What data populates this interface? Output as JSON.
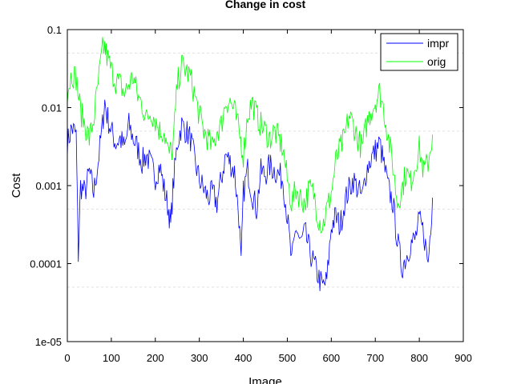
{
  "chart_data": {
    "type": "line",
    "title": "Change in cost",
    "xlabel": "Image",
    "ylabel": "Cost",
    "xlim": [
      0,
      900
    ],
    "ylim": [
      1e-05,
      0.1
    ],
    "yscale": "log",
    "grid": "horizontal dashed at minor log ticks",
    "legend_position": "top-right",
    "x_ticks": [
      {
        "value": 0,
        "label": "0"
      },
      {
        "value": 100,
        "label": "100"
      },
      {
        "value": 200,
        "label": "200"
      },
      {
        "value": 300,
        "label": "300"
      },
      {
        "value": 400,
        "label": "400"
      },
      {
        "value": 500,
        "label": "500"
      },
      {
        "value": 600,
        "label": "600"
      },
      {
        "value": 700,
        "label": "700"
      },
      {
        "value": 800,
        "label": "800"
      },
      {
        "value": 900,
        "label": "900"
      }
    ],
    "y_ticks": [
      {
        "value": 1e-05,
        "label": "1e-05"
      },
      {
        "value": 0.0001,
        "label": "0.0001"
      },
      {
        "value": 0.001,
        "label": "0.001"
      },
      {
        "value": 0.01,
        "label": "0.01"
      },
      {
        "value": 0.1,
        "label": "0.1"
      }
    ],
    "series": [
      {
        "name": "impr",
        "color": "#0000ff",
        "x": [
          0,
          10,
          20,
          25,
          30,
          40,
          50,
          60,
          70,
          80,
          85,
          90,
          100,
          110,
          120,
          130,
          140,
          150,
          160,
          170,
          180,
          190,
          200,
          210,
          220,
          230,
          235,
          240,
          250,
          260,
          270,
          280,
          290,
          300,
          310,
          320,
          330,
          340,
          350,
          360,
          370,
          380,
          390,
          395,
          400,
          410,
          420,
          430,
          440,
          450,
          460,
          470,
          480,
          490,
          500,
          510,
          520,
          530,
          540,
          550,
          560,
          570,
          580,
          590,
          600,
          610,
          620,
          630,
          640,
          650,
          660,
          670,
          680,
          690,
          700,
          710,
          720,
          730,
          740,
          750,
          760,
          770,
          780,
          790,
          800,
          810,
          820,
          830
        ],
        "y": [
          0.0035,
          0.0055,
          0.0045,
          0.00013,
          0.001,
          0.0008,
          0.0015,
          0.0008,
          0.002,
          0.006,
          0.012,
          0.008,
          0.005,
          0.0035,
          0.004,
          0.003,
          0.006,
          0.004,
          0.003,
          0.002,
          0.0025,
          0.0018,
          0.0013,
          0.0018,
          0.0009,
          0.0005,
          0.0003,
          0.0009,
          0.0035,
          0.006,
          0.005,
          0.004,
          0.002,
          0.0012,
          0.0009,
          0.0007,
          0.0008,
          0.0006,
          0.0012,
          0.0025,
          0.002,
          0.0015,
          0.0004,
          9e-05,
          0.0008,
          0.0016,
          0.0008,
          0.0005,
          0.0015,
          0.0014,
          0.0018,
          0.0016,
          0.0014,
          0.0012,
          0.0004,
          0.0001,
          0.0003,
          0.00018,
          0.00025,
          0.00015,
          0.0001,
          7e-05,
          5e-05,
          6e-05,
          0.0003,
          0.0004,
          0.0003,
          0.0006,
          0.0009,
          0.0012,
          0.0009,
          0.0007,
          0.0016,
          0.0022,
          0.0028,
          0.0035,
          0.0018,
          0.0009,
          0.0006,
          0.0002,
          9e-05,
          0.00012,
          0.00018,
          0.0002,
          0.00035,
          0.00025,
          0.0001,
          0.0007
        ]
      },
      {
        "name": "orig",
        "color": "#00ff00",
        "x": [
          0,
          10,
          20,
          30,
          40,
          50,
          60,
          70,
          80,
          85,
          90,
          100,
          110,
          120,
          130,
          140,
          150,
          160,
          170,
          180,
          190,
          200,
          210,
          220,
          230,
          240,
          250,
          260,
          270,
          280,
          290,
          300,
          310,
          320,
          330,
          340,
          350,
          360,
          370,
          380,
          390,
          400,
          410,
          420,
          430,
          440,
          450,
          460,
          470,
          480,
          490,
          500,
          510,
          520,
          530,
          540,
          550,
          560,
          570,
          580,
          590,
          600,
          610,
          620,
          630,
          640,
          650,
          660,
          670,
          680,
          690,
          700,
          710,
          720,
          730,
          740,
          750,
          760,
          770,
          780,
          790,
          800,
          810,
          820,
          830
        ],
        "y": [
          0.016,
          0.028,
          0.024,
          0.009,
          0.006,
          0.004,
          0.007,
          0.02,
          0.055,
          0.06,
          0.045,
          0.03,
          0.022,
          0.02,
          0.015,
          0.02,
          0.025,
          0.014,
          0.011,
          0.007,
          0.009,
          0.007,
          0.005,
          0.005,
          0.0025,
          0.003,
          0.02,
          0.035,
          0.03,
          0.024,
          0.014,
          0.008,
          0.005,
          0.004,
          0.003,
          0.005,
          0.006,
          0.012,
          0.012,
          0.009,
          0.005,
          0.0025,
          0.008,
          0.012,
          0.008,
          0.006,
          0.005,
          0.004,
          0.005,
          0.004,
          0.003,
          0.0012,
          0.0006,
          0.0009,
          0.0007,
          0.0006,
          0.0009,
          0.0008,
          0.0004,
          0.0003,
          0.0005,
          0.0008,
          0.002,
          0.003,
          0.004,
          0.008,
          0.006,
          0.004,
          0.003,
          0.006,
          0.009,
          0.012,
          0.016,
          0.009,
          0.004,
          0.0018,
          0.0006,
          0.0009,
          0.0015,
          0.0011,
          0.0018,
          0.003,
          0.0015,
          0.002,
          0.0045
        ]
      }
    ]
  }
}
